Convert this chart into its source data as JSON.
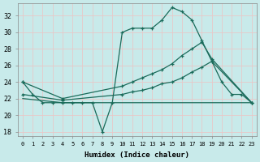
{
  "xlabel": "Humidex (Indice chaleur)",
  "x_ticks": [
    0,
    1,
    2,
    3,
    4,
    5,
    6,
    7,
    8,
    9,
    10,
    11,
    12,
    13,
    14,
    15,
    16,
    17,
    18,
    19,
    20,
    21,
    22,
    23
  ],
  "ylim": [
    17.5,
    33.5
  ],
  "yticks": [
    18,
    20,
    22,
    24,
    26,
    28,
    30,
    32
  ],
  "xlim": [
    -0.5,
    23.5
  ],
  "bg_color": "#c8eaea",
  "grid_color": "#e8c8c8",
  "line_color": "#1a6b5a",
  "line1_x": [
    0,
    1,
    2,
    3,
    4,
    5,
    6,
    7,
    8,
    9,
    10,
    11,
    12,
    13,
    14,
    15,
    16,
    17,
    18,
    19,
    20,
    21,
    22,
    23
  ],
  "line1_y": [
    24.0,
    22.5,
    21.5,
    21.5,
    21.5,
    21.5,
    21.5,
    21.5,
    18.0,
    21.5,
    30.0,
    30.5,
    30.5,
    30.5,
    31.5,
    33.0,
    32.5,
    31.5,
    29.0,
    26.5,
    24.0,
    22.5,
    22.5,
    21.5
  ],
  "line2_x": [
    0,
    4,
    10,
    11,
    12,
    13,
    14,
    15,
    16,
    17,
    18,
    19,
    23
  ],
  "line2_y": [
    24.0,
    22.0,
    23.5,
    24.0,
    24.5,
    25.0,
    25.5,
    26.2,
    27.2,
    28.0,
    28.8,
    26.8,
    21.5
  ],
  "line3_x": [
    0,
    4,
    10,
    11,
    12,
    13,
    14,
    15,
    16,
    17,
    18,
    19,
    23
  ],
  "line3_y": [
    22.5,
    21.8,
    22.5,
    22.8,
    23.0,
    23.3,
    23.8,
    24.0,
    24.5,
    25.2,
    25.8,
    26.5,
    21.5
  ],
  "line4_x": [
    0,
    4,
    9,
    19,
    23
  ],
  "line4_y": [
    22.0,
    21.5,
    21.5,
    21.5,
    21.5
  ]
}
